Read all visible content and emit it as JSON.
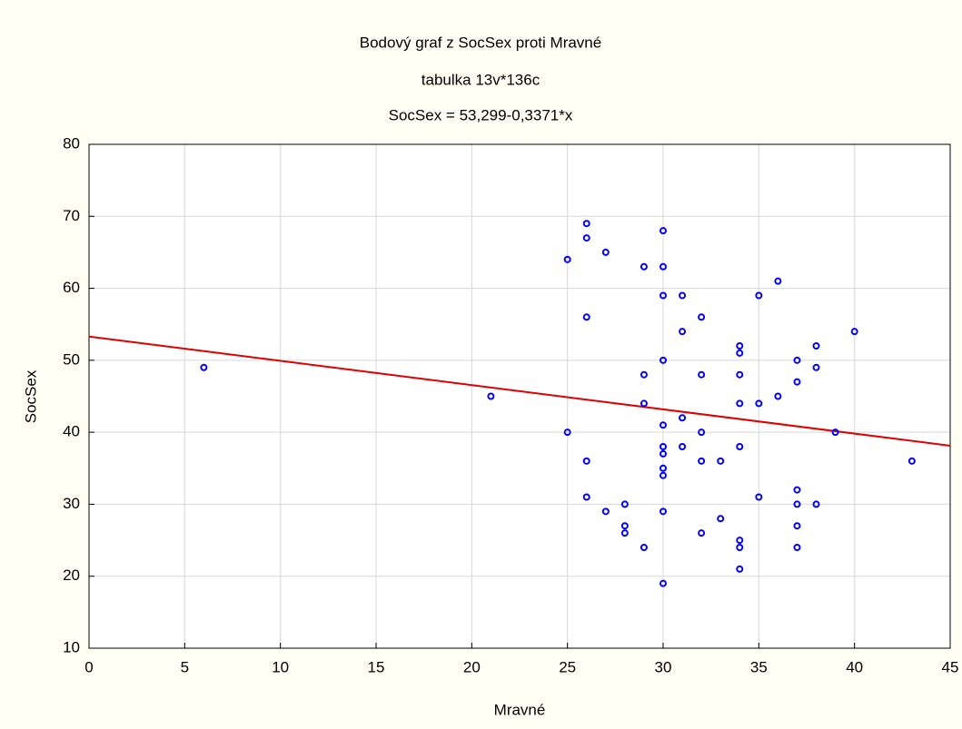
{
  "chart_data": {
    "type": "scatter",
    "title": "Bodový graf z SocSex proti Mravné",
    "subtitle": "tabulka 13v*136c",
    "equation": "SocSex  = 53,299-0,3371*x",
    "xlabel": "Mravné",
    "ylabel": "SocSex",
    "x": [
      6,
      21,
      25,
      25,
      26,
      26,
      26,
      26,
      26,
      27,
      27,
      28,
      28,
      28,
      29,
      29,
      29,
      29,
      30,
      30,
      30,
      30,
      30,
      30,
      30,
      30,
      30,
      30,
      30,
      31,
      31,
      31,
      31,
      32,
      32,
      32,
      32,
      32,
      33,
      33,
      34,
      34,
      34,
      34,
      34,
      34,
      34,
      34,
      35,
      35,
      35,
      36,
      36,
      37,
      37,
      37,
      37,
      37,
      37,
      38,
      38,
      38,
      39,
      40,
      43
    ],
    "series": [
      {
        "name": "SocSex",
        "color": "#0000ff",
        "values": [
          49,
          45,
          40,
          64,
          69,
          67,
          56,
          36,
          31,
          65,
          29,
          30,
          27,
          26,
          63,
          48,
          44,
          24,
          68,
          63,
          59,
          50,
          41,
          38,
          37,
          35,
          34,
          29,
          19,
          59,
          54,
          42,
          38,
          56,
          48,
          40,
          36,
          26,
          36,
          28,
          52,
          51,
          48,
          44,
          38,
          25,
          24,
          21,
          59,
          44,
          31,
          61,
          45,
          50,
          47,
          32,
          30,
          27,
          24,
          52,
          49,
          30,
          40,
          54,
          36
        ]
      }
    ],
    "trendline": {
      "intercept": 53.299,
      "slope": -0.3371,
      "color": "#e00000"
    },
    "xlim": [
      0,
      45
    ],
    "xticks": [
      0,
      5,
      10,
      15,
      20,
      25,
      30,
      35,
      40,
      45
    ],
    "ylim": [
      10,
      80
    ],
    "yticks": [
      10,
      20,
      30,
      40,
      50,
      60,
      70,
      80
    ],
    "grid": true
  }
}
